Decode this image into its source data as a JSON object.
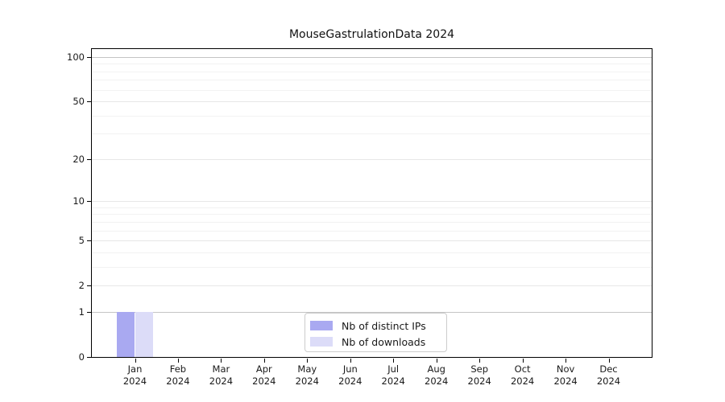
{
  "chart_data": {
    "type": "bar",
    "title": "MouseGastrulationData 2024",
    "xlabel": "",
    "ylabel": "",
    "categories": [
      "Jan",
      "Feb",
      "Mar",
      "Apr",
      "May",
      "Jun",
      "Jul",
      "Aug",
      "Sep",
      "Oct",
      "Nov",
      "Dec"
    ],
    "year_label": "2024",
    "series": [
      {
        "name": "Nb of distinct IPs",
        "color": "#a9a9f1",
        "values": [
          1,
          0,
          0,
          0,
          0,
          0,
          0,
          0,
          0,
          0,
          0,
          0
        ]
      },
      {
        "name": "Nb of downloads",
        "color": "#dcdcf8",
        "values": [
          1,
          0,
          0,
          0,
          0,
          0,
          0,
          0,
          0,
          0,
          0,
          0
        ]
      }
    ],
    "y_scale": "log10(1+v)",
    "y_major_ticks": [
      0,
      1,
      2,
      5,
      10,
      20,
      50,
      100
    ],
    "y_emphasis_gridlines": [
      1,
      100
    ],
    "y_minor_gridlines": [
      3,
      4,
      6,
      7,
      8,
      9,
      30,
      40,
      60,
      70,
      80,
      90
    ],
    "y_top_value": 113,
    "grid": true,
    "legend_position": "lower center"
  },
  "colors": {
    "axis": "#000000",
    "grid_emphasis": "#c4c4c4",
    "grid_major": "#e7e7e7",
    "grid_minor": "#f2f2f2",
    "text": "#1a1a1a",
    "background": "#ffffff"
  }
}
